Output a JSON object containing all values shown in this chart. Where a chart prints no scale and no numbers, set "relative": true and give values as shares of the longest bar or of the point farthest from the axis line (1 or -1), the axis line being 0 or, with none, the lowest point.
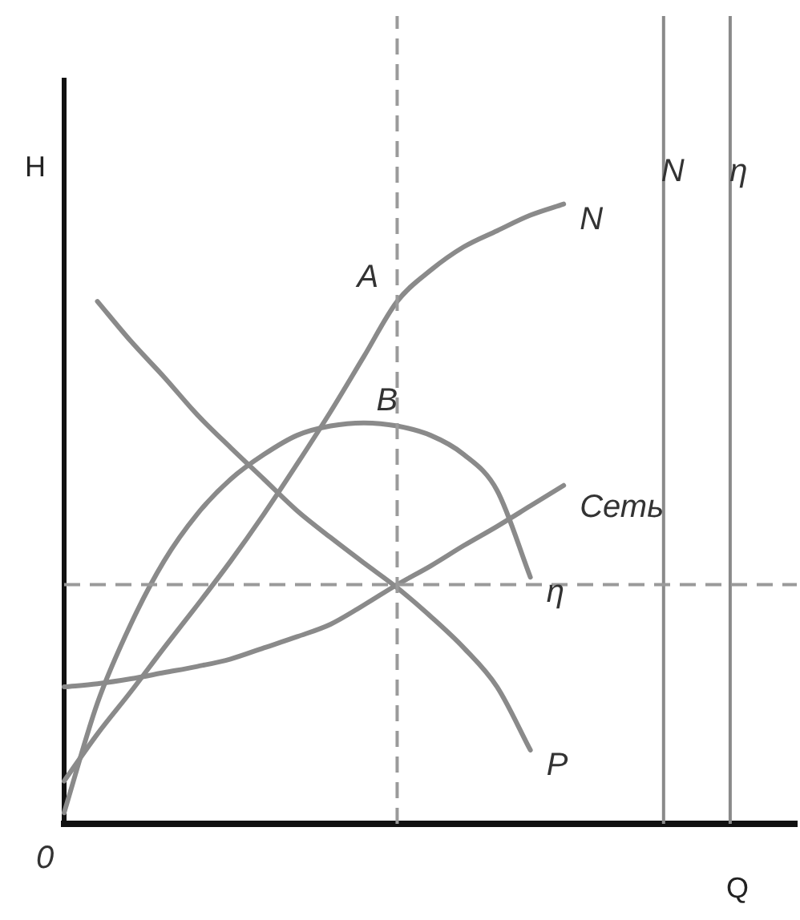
{
  "chart_data": {
    "type": "line",
    "relative": true,
    "xlabel": "Q",
    "ylabel": "H",
    "legend": false,
    "grid": false,
    "tick_labels": false,
    "marker": "none",
    "line_style": "solid",
    "categories": [
      null,
      null,
      null,
      null,
      null,
      null,
      null,
      null,
      null,
      null,
      null,
      null,
      null,
      null,
      null,
      null,
      null,
      null,
      null,
      null,
      null,
      null,
      null
    ],
    "series": [
      {
        "name": "N",
        "color": "#8a8a8a",
        "values": [
          0.069,
          0.145,
          0.213,
          0.284,
          0.353,
          0.424,
          0.5,
          0.581,
          0.665,
          0.754,
          0.843,
          0.893,
          0.931,
          0.957,
          0.982,
          1,
          null,
          null,
          null,
          null,
          null,
          null,
          null
        ]
      },
      {
        "name": "η",
        "color": "#8a8a8a",
        "values": [
          0.018,
          0.195,
          0.322,
          0.424,
          0.5,
          0.556,
          0.596,
          0.627,
          0.642,
          0.647,
          0.642,
          0.627,
          0.596,
          0.538,
          0.398,
          null,
          null,
          null,
          null,
          null,
          null,
          null,
          null
        ]
      },
      {
        "name": "P",
        "color": "#8a8a8a",
        "values": [
          null,
          0.843,
          0.779,
          0.721,
          0.66,
          0.607,
          0.556,
          0.505,
          0.462,
          0.421,
          0.381,
          0.335,
          0.284,
          0.221,
          0.119,
          null,
          null,
          null,
          null,
          null,
          null,
          null,
          null
        ]
      },
      {
        "name": "Сеть",
        "color": "#8a8a8a",
        "values": [
          0.221,
          0.226,
          0.234,
          0.244,
          0.254,
          0.266,
          0.284,
          0.302,
          0.322,
          0.353,
          0.386,
          0.416,
          0.449,
          0.48,
          0.513,
          0.546,
          null,
          null,
          null,
          null,
          null,
          null,
          null
        ]
      }
    ],
    "ref_lines": [
      {
        "axis": "y",
        "value": 0.386,
        "label": null,
        "line_style": "dashed",
        "color": "#9a9a9a"
      }
    ],
    "annotations": [
      "A",
      "B",
      "0",
      "N",
      "η"
    ]
  }
}
